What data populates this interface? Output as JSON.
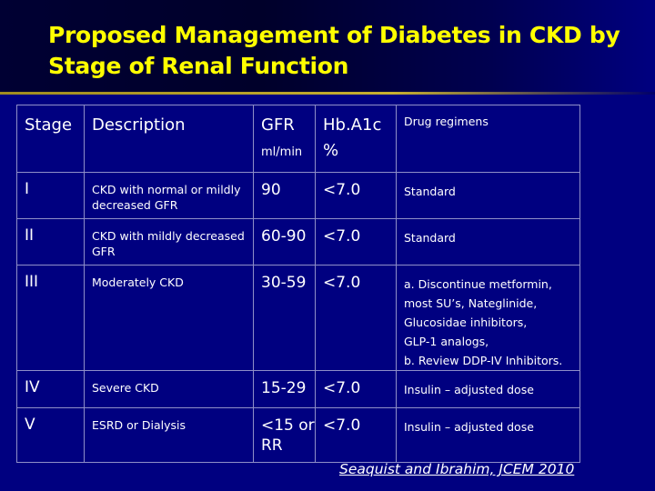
{
  "slide": {
    "title": "Proposed Management of Diabetes in CKD by Stage of Renal Function",
    "citation": "Seaquist and Ibrahim, JCEM 2010",
    "colors": {
      "background": "#000080",
      "title": "#ffff00",
      "text": "#ffffff",
      "rule": "#c8b030"
    }
  },
  "table": {
    "headers": {
      "stage": "Stage",
      "description": "Description",
      "gfr": "GFR",
      "gfr_unit": "ml/min",
      "hba1c": "Hb.A1c",
      "hba1c_unit": "%",
      "drug": "Drug regimens"
    },
    "rows": [
      {
        "stage": "I",
        "description": "CKD  with normal or mildly decreased GFR",
        "gfr": "90",
        "hba1c": "<7.0",
        "drug": [
          "Standard"
        ]
      },
      {
        "stage": "II",
        "description": "CKD  with mildly decreased GFR",
        "gfr": "60-90",
        "hba1c": "<7.0",
        "drug": [
          "Standard"
        ]
      },
      {
        "stage": "III",
        "description": "Moderately CKD",
        "gfr": "30-59",
        "hba1c": "<7.0",
        "drug": [
          "a. Discontinue metformin, most SU’s, Nateglinide, Glucosidae inhibitors,",
          "GLP-1 analogs,",
          "b. Review DDP-IV Inhibitors."
        ]
      },
      {
        "stage": "IV",
        "description": "Severe CKD",
        "gfr": "15-29",
        "hba1c": "<7.0",
        "drug": [
          "Insulin – adjusted dose"
        ]
      },
      {
        "stage": "V",
        "description": "ESRD or Dialysis",
        "gfr": "<15 or RR",
        "hba1c": "<7.0",
        "drug": [
          "Insulin – adjusted dose"
        ]
      }
    ]
  }
}
